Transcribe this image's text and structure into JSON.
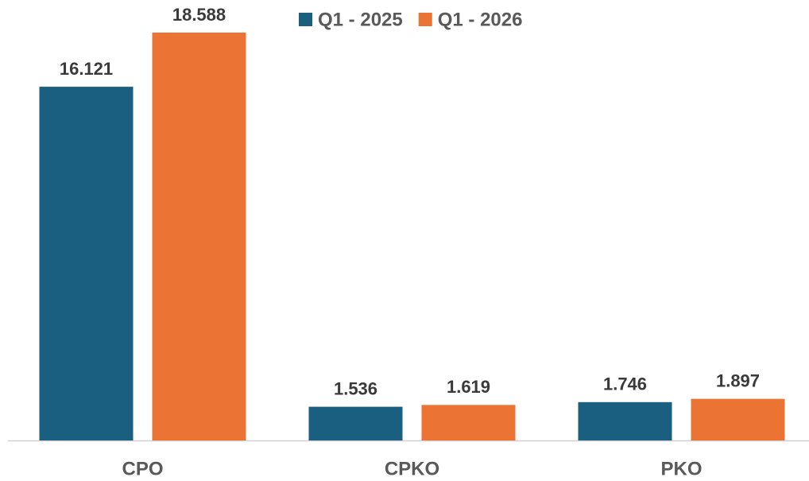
{
  "chart_data": {
    "type": "bar",
    "categories": [
      "CPO",
      "CPKO",
      "PKO"
    ],
    "series": [
      {
        "name": "Q1 - 2025",
        "color": "#1a5e80",
        "values": [
          16.121,
          1.536,
          1.746
        ]
      },
      {
        "name": "Q1 - 2026",
        "color": "#eb7434",
        "values": [
          18.588,
          1.619,
          1.897
        ]
      }
    ],
    "legend": "top"
  }
}
